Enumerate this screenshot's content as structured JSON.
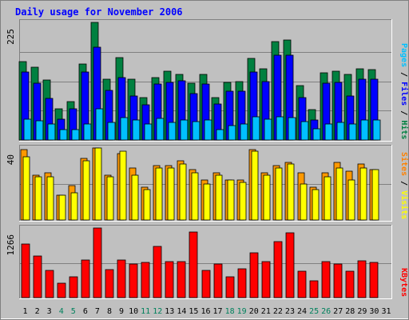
{
  "chart_data": {
    "type": "bar",
    "title": "Daily usage for November 2006",
    "days": [
      "1",
      "2",
      "3",
      "4",
      "5",
      "6",
      "7",
      "8",
      "9",
      "10",
      "11",
      "12",
      "13",
      "14",
      "15",
      "16",
      "17",
      "18",
      "19",
      "20",
      "21",
      "22",
      "23",
      "24",
      "25",
      "26",
      "27",
      "28",
      "29",
      "30",
      "31"
    ],
    "weekend_days": [
      "4",
      "5",
      "11",
      "12",
      "18",
      "19",
      "25",
      "26"
    ],
    "panels": [
      {
        "name": "hits",
        "max_label": "225",
        "ymax": 225,
        "right_label_parts": [
          {
            "text": "Pages",
            "color": "#00c0ff"
          },
          {
            "text": " / ",
            "color": "#000000"
          },
          {
            "text": "Files",
            "color": "#0000ff"
          },
          {
            "text": " / ",
            "color": "#000000"
          },
          {
            "text": "Hits",
            "color": "#008040"
          }
        ],
        "series": [
          {
            "name": "Hits",
            "color": "#008040",
            "values": [
              150,
              139,
              115,
              60,
              73,
              145,
              225,
              116,
              158,
              117,
              81,
              119,
              132,
              125,
              109,
              125,
              81,
              110,
              111,
              156,
              136,
              188,
              191,
              104,
              58,
              129,
              131,
              125,
              136,
              135,
              0
            ]
          },
          {
            "name": "Files",
            "color": "#0000ff",
            "values": [
              130,
              108,
              79,
              40,
              60,
              130,
              177,
              95,
              120,
              84,
              67,
              107,
              110,
              114,
              89,
              107,
              69,
              93,
              94,
              130,
              111,
              163,
              163,
              81,
              39,
              109,
              110,
              84,
              116,
              116,
              0
            ]
          },
          {
            "name": "Pages",
            "color": "#00c0ff",
            "values": [
              40,
              36,
              30,
              20,
              20,
              30,
              59,
              34,
              43,
              39,
              31,
              41,
              33,
              38,
              35,
              38,
              20,
              28,
              31,
              45,
              40,
              44,
              43,
              35,
              22,
              30,
              33,
              30,
              38,
              38,
              0
            ]
          }
        ]
      },
      {
        "name": "visits",
        "max_label": "40",
        "ymax": 40,
        "right_label_parts": [
          {
            "text": "Sites",
            "color": "#ff8000"
          },
          {
            "text": " / ",
            "color": "#000000"
          },
          {
            "text": "Visits",
            "color": "#ffff00"
          }
        ],
        "series": [
          {
            "name": "Visits",
            "color": "#ff9900",
            "values": [
              39,
              25,
              26,
              14,
              19,
              34,
              40,
              25,
              37,
              29,
              18,
              30,
              30,
              33,
              28,
              22,
              26,
              22,
              22,
              39,
              26,
              30,
              32,
              26,
              18,
              26,
              32,
              27,
              31,
              28,
              0
            ]
          },
          {
            "name": "Sites",
            "color": "#ffff00",
            "values": [
              35,
              24,
              24,
              14,
              15,
              33,
              40,
              24,
              38,
              25,
              17,
              29,
              29,
              31,
              26,
              20,
              25,
              22,
              21,
              38,
              25,
              29,
              31,
              20,
              17,
              24,
              29,
              22,
              29,
              28,
              0
            ]
          }
        ]
      },
      {
        "name": "kbytes",
        "max_label": "1266",
        "ymax": 1266,
        "right_label_parts": [
          {
            "text": "KBytes",
            "color": "#ff0000"
          }
        ],
        "series": [
          {
            "name": "KBytes",
            "color": "#ff0000",
            "values": [
              970,
              762,
              490,
              262,
              379,
              682,
              1266,
              513,
              682,
              617,
              637,
              938,
              661,
              657,
              1186,
              491,
              617,
              382,
              522,
              814,
              661,
              1023,
              1172,
              481,
              300,
              648,
              609,
              481,
              674,
              638,
              0
            ]
          }
        ]
      }
    ],
    "colors": {
      "background": "#c0c0c0",
      "title": "#0000ff",
      "weekday_label": "#000000",
      "weekend_label": "#00805c"
    }
  }
}
